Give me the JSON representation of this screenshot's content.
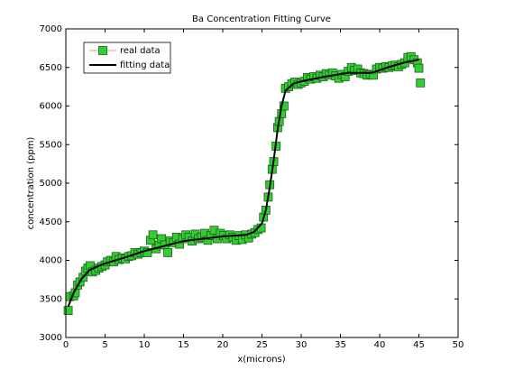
{
  "chart_data": {
    "type": "line",
    "title": "Ba Concentration Fitting Curve",
    "xlabel": "x(microns)",
    "ylabel": "concentration (ppm)",
    "xlim": [
      0,
      50
    ],
    "xticks": [
      0,
      5,
      10,
      15,
      20,
      25,
      30,
      35,
      40,
      45,
      50
    ],
    "ylim": [
      3000,
      7000
    ],
    "yticks": [
      3000,
      3500,
      4000,
      4500,
      5000,
      5500,
      6000,
      6500,
      7000
    ],
    "legend": "upper left",
    "series": [
      {
        "name": "real data",
        "color": "#33cc33",
        "marker": "square",
        "x": [
          0.3,
          0.5,
          1.0,
          1.2,
          1.5,
          1.8,
          2.2,
          2.5,
          2.8,
          3.1,
          3.4,
          3.8,
          4.2,
          4.6,
          5.0,
          5.3,
          5.7,
          6.1,
          6.4,
          6.8,
          7.2,
          7.6,
          8.0,
          8.4,
          8.8,
          9.2,
          9.6,
          10.0,
          10.4,
          10.8,
          11.1,
          11.5,
          11.9,
          12.2,
          12.6,
          13.0,
          13.3,
          13.7,
          14.1,
          14.5,
          14.9,
          15.3,
          15.7,
          16.1,
          16.5,
          16.9,
          17.3,
          17.7,
          18.1,
          18.5,
          18.9,
          19.3,
          19.7,
          20.1,
          20.5,
          20.9,
          21.3,
          21.7,
          22.1,
          22.5,
          22.9,
          23.3,
          23.7,
          24.1,
          24.5,
          24.9,
          25.2,
          25.5,
          25.8,
          26.0,
          26.3,
          26.5,
          26.8,
          27.0,
          27.2,
          27.5,
          27.8,
          28.0,
          28.4,
          28.8,
          29.2,
          29.6,
          30.0,
          30.4,
          30.8,
          31.2,
          31.6,
          32.0,
          32.4,
          32.8,
          33.2,
          33.6,
          34.0,
          34.4,
          34.8,
          35.2,
          35.6,
          36.0,
          36.4,
          36.8,
          37.2,
          37.6,
          38.0,
          38.4,
          38.8,
          39.2,
          39.6,
          40.0,
          40.4,
          40.8,
          41.2,
          41.6,
          42.0,
          42.4,
          42.8,
          43.2,
          43.6,
          44.0,
          44.4,
          44.8,
          45.0,
          45.2
        ],
        "values": [
          3350,
          3530,
          3540,
          3580,
          3680,
          3720,
          3780,
          3860,
          3900,
          3930,
          3850,
          3870,
          3900,
          3920,
          3940,
          3980,
          4000,
          3980,
          4050,
          4010,
          4030,
          4020,
          4050,
          4060,
          4100,
          4080,
          4100,
          4120,
          4100,
          4260,
          4330,
          4150,
          4200,
          4280,
          4200,
          4100,
          4250,
          4230,
          4300,
          4210,
          4280,
          4330,
          4300,
          4250,
          4340,
          4280,
          4300,
          4350,
          4260,
          4320,
          4390,
          4280,
          4350,
          4320,
          4280,
          4330,
          4300,
          4260,
          4320,
          4270,
          4330,
          4290,
          4340,
          4360,
          4400,
          4420,
          4560,
          4650,
          4820,
          4980,
          5180,
          5280,
          5480,
          5720,
          5800,
          5900,
          6000,
          6230,
          6250,
          6290,
          6310,
          6280,
          6300,
          6320,
          6370,
          6350,
          6380,
          6360,
          6400,
          6380,
          6420,
          6400,
          6430,
          6390,
          6360,
          6410,
          6380,
          6450,
          6500,
          6460,
          6480,
          6430,
          6420,
          6400,
          6410,
          6400,
          6480,
          6500,
          6490,
          6510,
          6500,
          6520,
          6530,
          6510,
          6540,
          6560,
          6630,
          6640,
          6600,
          6560,
          6490,
          6300
        ]
      },
      {
        "name": "fitting data",
        "color": "#000000",
        "marker": "none",
        "x": [
          0.3,
          1,
          2,
          3,
          4,
          5,
          7,
          10,
          15,
          20,
          23,
          24,
          25,
          25.5,
          26,
          26.5,
          27,
          27.5,
          28,
          29,
          30,
          33,
          36,
          39,
          41,
          43,
          44,
          45
        ],
        "values": [
          3400,
          3580,
          3760,
          3870,
          3920,
          3960,
          4020,
          4120,
          4250,
          4310,
          4330,
          4370,
          4480,
          4650,
          4950,
          5300,
          5700,
          6000,
          6200,
          6290,
          6320,
          6380,
          6430,
          6430,
          6500,
          6560,
          6580,
          6600
        ]
      }
    ]
  }
}
